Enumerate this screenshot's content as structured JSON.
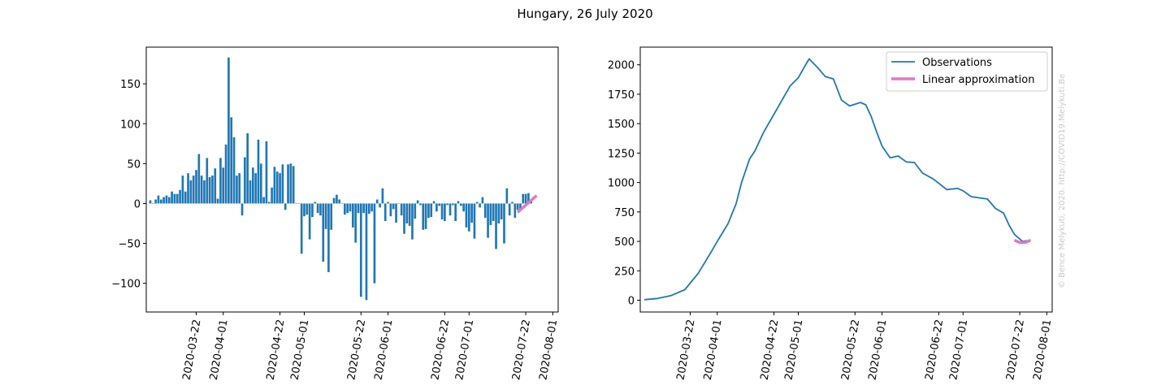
{
  "figure_title": "Hungary, 26 July 2020",
  "watermark": "© Bence Melykuti, 2020. http://COVID19.Melykuti.Be",
  "colors": {
    "bar": "#1f77b4",
    "line": "#1f77b4",
    "approx": "#e377c2"
  },
  "chart_data": [
    {
      "type": "bar",
      "title": "",
      "xlabel": "",
      "ylabel": "",
      "ylim": [
        -136,
        196
      ],
      "yticks": [
        -100,
        -50,
        0,
        50,
        100,
        150
      ],
      "x_tick_labels": [
        "2020-03-22",
        "2020-04-01",
        "2020-04-22",
        "2020-05-01",
        "2020-05-22",
        "2020-06-01",
        "2020-06-22",
        "2020-07-01",
        "2020-07-22",
        "2020-08-01"
      ],
      "start_date": "2020-03-05",
      "x_end_date": "2020-08-03",
      "values": [
        4,
        0,
        5,
        10,
        5,
        8,
        10,
        8,
        15,
        12,
        12,
        17,
        35,
        15,
        38,
        29,
        35,
        42,
        62,
        35,
        29,
        57,
        33,
        35,
        44,
        6,
        57,
        45,
        74,
        183,
        108,
        83,
        35,
        38,
        -15,
        58,
        88,
        29,
        45,
        38,
        80,
        50,
        8,
        78,
        2,
        20,
        46,
        40,
        38,
        49,
        -8,
        49,
        50,
        47,
        0,
        0,
        -63,
        -16,
        -14,
        -45,
        -17,
        2,
        -12,
        -15,
        -73,
        -32,
        -86,
        -33,
        7,
        11,
        5,
        0,
        -14,
        -12,
        -10,
        -30,
        -49,
        -12,
        -117,
        -12,
        -121,
        -13,
        -10,
        -100,
        5,
        -5,
        19,
        -22,
        2,
        -16,
        -7,
        -24,
        0,
        -15,
        -38,
        -25,
        -28,
        -45,
        -19,
        4,
        -2,
        -33,
        -32,
        -18,
        -17,
        3,
        -10,
        -3,
        -20,
        -22,
        -2,
        -15,
        -2,
        -22,
        3,
        -3,
        -10,
        -30,
        -35,
        -24,
        -44,
        2,
        -5,
        8,
        -18,
        -43,
        -27,
        -22,
        -57,
        -25,
        -20,
        -50,
        19,
        -15,
        2,
        -18,
        -8,
        -8,
        12,
        12,
        13,
        4
      ],
      "approximation": {
        "name": "Linear approximation",
        "x": [
          "2020-07-19",
          "2020-07-26"
        ],
        "y": [
          -11,
          10
        ]
      }
    },
    {
      "type": "line",
      "title": "",
      "xlabel": "",
      "ylabel": "",
      "ylim": [
        -100,
        2150
      ],
      "yticks": [
        0,
        250,
        500,
        750,
        1000,
        1250,
        1500,
        1750,
        2000
      ],
      "x_tick_labels": [
        "2020-03-22",
        "2020-04-01",
        "2020-04-22",
        "2020-05-01",
        "2020-05-22",
        "2020-06-01",
        "2020-06-22",
        "2020-07-01",
        "2020-07-22",
        "2020-08-01"
      ],
      "start_date": "2020-03-05",
      "x_end_date": "2020-08-03",
      "legend_position": "top-right",
      "series": [
        {
          "name": "Observations",
          "x": [
            "2020-03-05",
            "2020-03-10",
            "2020-03-15",
            "2020-03-20",
            "2020-03-25",
            "2020-03-30",
            "2020-04-01",
            "2020-04-05",
            "2020-04-08",
            "2020-04-10",
            "2020-04-13",
            "2020-04-15",
            "2020-04-18",
            "2020-04-20",
            "2020-04-22",
            "2020-04-25",
            "2020-04-28",
            "2020-05-01",
            "2020-05-03",
            "2020-05-05",
            "2020-05-08",
            "2020-05-11",
            "2020-05-14",
            "2020-05-17",
            "2020-05-20",
            "2020-05-24",
            "2020-05-26",
            "2020-05-28",
            "2020-05-30",
            "2020-06-01",
            "2020-06-04",
            "2020-06-07",
            "2020-06-10",
            "2020-06-13",
            "2020-06-16",
            "2020-06-20",
            "2020-06-25",
            "2020-06-29",
            "2020-07-01",
            "2020-07-04",
            "2020-07-07",
            "2020-07-10",
            "2020-07-13",
            "2020-07-16",
            "2020-07-18",
            "2020-07-20",
            "2020-07-23",
            "2020-07-26"
          ],
          "y": [
            5,
            15,
            40,
            90,
            230,
            420,
            500,
            650,
            820,
            1000,
            1200,
            1270,
            1420,
            1500,
            1580,
            1700,
            1820,
            1890,
            1970,
            2050,
            1980,
            1900,
            1880,
            1700,
            1650,
            1680,
            1660,
            1560,
            1430,
            1310,
            1210,
            1225,
            1175,
            1170,
            1080,
            1030,
            940,
            950,
            930,
            880,
            870,
            860,
            780,
            740,
            640,
            560,
            500,
            510
          ]
        }
      ],
      "approximation": {
        "name": "Linear approximation",
        "x": [
          "2020-07-20",
          "2020-07-22",
          "2020-07-24",
          "2020-07-26"
        ],
        "y": [
          510,
          490,
          490,
          510
        ]
      }
    }
  ]
}
